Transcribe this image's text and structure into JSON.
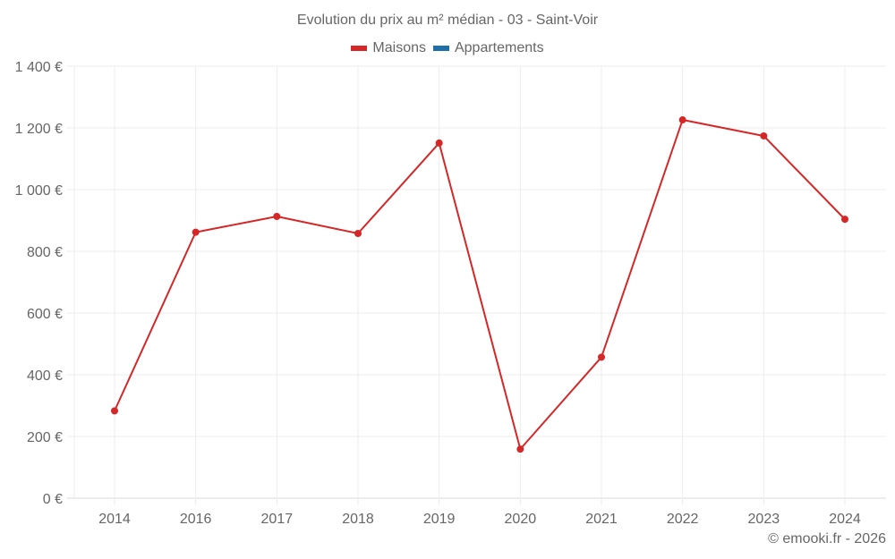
{
  "chart_data": {
    "type": "line",
    "title": "Evolution du prix au m² médian - 03 - Saint-Voir",
    "xlabel": "",
    "ylabel": "",
    "categories": [
      "2014",
      "2016",
      "2017",
      "2018",
      "2019",
      "2020",
      "2021",
      "2022",
      "2023",
      "2024"
    ],
    "series": [
      {
        "name": "Maisons",
        "color": "#d62728",
        "values": [
          283,
          862,
          913,
          858,
          1151,
          159,
          457,
          1226,
          1174,
          904
        ]
      },
      {
        "name": "Appartements",
        "color": "#1f6fa8",
        "values": []
      }
    ],
    "ylim": [
      0,
      1400
    ],
    "yticks": [
      0,
      200,
      400,
      600,
      800,
      1000,
      1200,
      1400
    ],
    "ytick_labels": [
      "0 €",
      "200 €",
      "400 €",
      "600 €",
      "800 €",
      "1 000 €",
      "1 200 €",
      "1 400 €"
    ],
    "grid": true,
    "legend_position": "top"
  },
  "legend": {
    "items": [
      {
        "label": "Maisons",
        "color": "#d62728"
      },
      {
        "label": "Appartements",
        "color": "#1f6fa8"
      }
    ]
  },
  "credit": "© emooki.fr - 2026"
}
